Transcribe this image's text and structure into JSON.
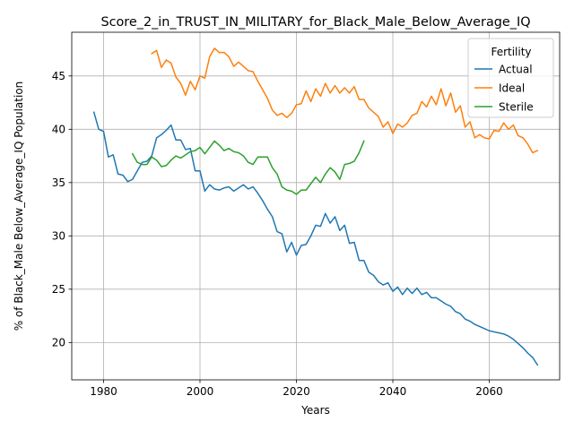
{
  "chart_data": {
    "type": "line",
    "title": "Score_2_in_TRUST_IN_MILITARY_for_Black_Male_Below_Average_IQ",
    "xlabel": "Years",
    "ylabel": "% of Black_Male Below_Average_IQ Population",
    "xlim": [
      1973.4,
      2074.6
    ],
    "ylim": [
      16.5,
      49.1
    ],
    "xticks": [
      1980,
      2000,
      2020,
      2040,
      2060
    ],
    "yticks": [
      20,
      25,
      30,
      35,
      40,
      45
    ],
    "grid": true,
    "legend": {
      "title": "Fertility",
      "placement": "top-right",
      "entries": [
        "Actual",
        "Ideal",
        "Sterile"
      ]
    },
    "series": [
      {
        "name": "Actual",
        "color": "#1f77b4",
        "x": [
          1978,
          1979,
          1980,
          1981,
          1982,
          1983,
          1984,
          1985,
          1986,
          1987,
          1988,
          1989,
          1990,
          1991,
          1992,
          1993,
          1994,
          1995,
          1996,
          1997,
          1998,
          1999,
          2000,
          2001,
          2002,
          2003,
          2004,
          2005,
          2006,
          2007,
          2008,
          2009,
          2010,
          2011,
          2012,
          2013,
          2014,
          2015,
          2016,
          2017,
          2018,
          2019,
          2020,
          2021,
          2022,
          2023,
          2024,
          2025,
          2026,
          2027,
          2028,
          2029,
          2030,
          2031,
          2032,
          2033,
          2034,
          2035,
          2036,
          2037,
          2038,
          2039,
          2040,
          2041,
          2042,
          2043,
          2044,
          2045,
          2046,
          2047,
          2048,
          2049,
          2050,
          2051,
          2052,
          2053,
          2054,
          2055,
          2056,
          2057,
          2058,
          2059,
          2060,
          2061,
          2062,
          2063,
          2064,
          2065,
          2066,
          2067,
          2068,
          2069,
          2070
        ],
        "values": [
          41.6,
          40.0,
          39.8,
          37.4,
          37.6,
          35.8,
          35.7,
          35.1,
          35.3,
          36.1,
          36.9,
          37.0,
          37.5,
          39.2,
          39.5,
          39.9,
          40.4,
          39.0,
          39.0,
          38.1,
          38.2,
          36.1,
          36.1,
          34.2,
          34.8,
          34.4,
          34.3,
          34.5,
          34.6,
          34.2,
          34.5,
          34.8,
          34.4,
          34.6,
          34.0,
          33.3,
          32.5,
          31.8,
          30.4,
          30.2,
          28.5,
          29.4,
          28.2,
          29.1,
          29.2,
          30.0,
          31.0,
          30.9,
          32.1,
          31.2,
          31.8,
          30.5,
          31.0,
          29.3,
          29.4,
          27.7,
          27.7,
          26.6,
          26.3,
          25.7,
          25.4,
          25.6,
          24.8,
          25.2,
          24.5,
          25.1,
          24.6,
          25.1,
          24.5,
          24.7,
          24.2,
          24.2,
          23.9,
          23.6,
          23.4,
          22.9,
          22.7,
          22.2,
          22.0,
          21.7,
          21.5,
          21.3,
          21.1,
          21.0,
          20.9,
          20.8,
          20.6,
          20.3,
          19.9,
          19.5,
          19.0,
          18.6,
          17.9
        ]
      },
      {
        "name": "Ideal",
        "color": "#ff7f0e",
        "x": [
          1990,
          1991,
          1992,
          1993,
          1994,
          1995,
          1996,
          1997,
          1998,
          1999,
          2000,
          2001,
          2002,
          2003,
          2004,
          2005,
          2006,
          2007,
          2008,
          2009,
          2010,
          2011,
          2012,
          2013,
          2014,
          2015,
          2016,
          2017,
          2018,
          2019,
          2020,
          2021,
          2022,
          2023,
          2024,
          2025,
          2026,
          2027,
          2028,
          2029,
          2030,
          2031,
          2032,
          2033,
          2034,
          2035,
          2036,
          2037,
          2038,
          2039,
          2040,
          2041,
          2042,
          2043,
          2044,
          2045,
          2046,
          2047,
          2048,
          2049,
          2050,
          2051,
          2052,
          2053,
          2054,
          2055,
          2056,
          2057,
          2058,
          2059,
          2060,
          2061,
          2062,
          2063,
          2064,
          2065,
          2066,
          2067,
          2068,
          2069,
          2070
        ],
        "values": [
          47.1,
          47.4,
          45.8,
          46.5,
          46.2,
          44.9,
          44.3,
          43.2,
          44.5,
          43.7,
          45.0,
          44.8,
          46.8,
          47.6,
          47.2,
          47.2,
          46.8,
          45.9,
          46.3,
          45.9,
          45.5,
          45.4,
          44.5,
          43.7,
          42.9,
          41.8,
          41.3,
          41.5,
          41.1,
          41.5,
          42.3,
          42.4,
          43.6,
          42.6,
          43.8,
          43.1,
          44.3,
          43.4,
          44.1,
          43.4,
          43.9,
          43.4,
          44.0,
          42.8,
          42.8,
          42.0,
          41.6,
          41.2,
          40.2,
          40.7,
          39.6,
          40.5,
          40.2,
          40.6,
          41.3,
          41.5,
          42.6,
          42.1,
          43.1,
          42.3,
          43.8,
          42.2,
          43.4,
          41.6,
          42.2,
          40.2,
          40.7,
          39.2,
          39.5,
          39.2,
          39.1,
          39.9,
          39.8,
          40.6,
          40.0,
          40.4,
          39.4,
          39.2,
          38.6,
          37.8,
          38.0
        ]
      },
      {
        "name": "Sterile",
        "color": "#2ca02c",
        "x": [
          1986,
          1987,
          1988,
          1989,
          1990,
          1991,
          1992,
          1993,
          1994,
          1995,
          1996,
          1997,
          1998,
          1999,
          2000,
          2001,
          2002,
          2003,
          2004,
          2005,
          2006,
          2007,
          2008,
          2009,
          2010,
          2011,
          2012,
          2013,
          2014,
          2015,
          2016,
          2017,
          2018,
          2019,
          2020,
          2021,
          2022,
          2023,
          2024,
          2025,
          2026,
          2027,
          2028,
          2029,
          2030,
          2031,
          2032,
          2033,
          2034
        ],
        "values": [
          37.7,
          36.9,
          36.7,
          36.7,
          37.4,
          37.1,
          36.5,
          36.6,
          37.1,
          37.5,
          37.3,
          37.6,
          37.9,
          38.0,
          38.3,
          37.7,
          38.3,
          38.9,
          38.5,
          38.0,
          38.2,
          37.9,
          37.8,
          37.5,
          36.9,
          36.7,
          37.4,
          37.4,
          37.4,
          36.4,
          35.8,
          34.6,
          34.3,
          34.2,
          33.9,
          34.3,
          34.3,
          34.9,
          35.5,
          35.0,
          35.8,
          36.4,
          36.0,
          35.3,
          36.7,
          36.8,
          37.0,
          37.8,
          38.9
        ]
      }
    ]
  }
}
